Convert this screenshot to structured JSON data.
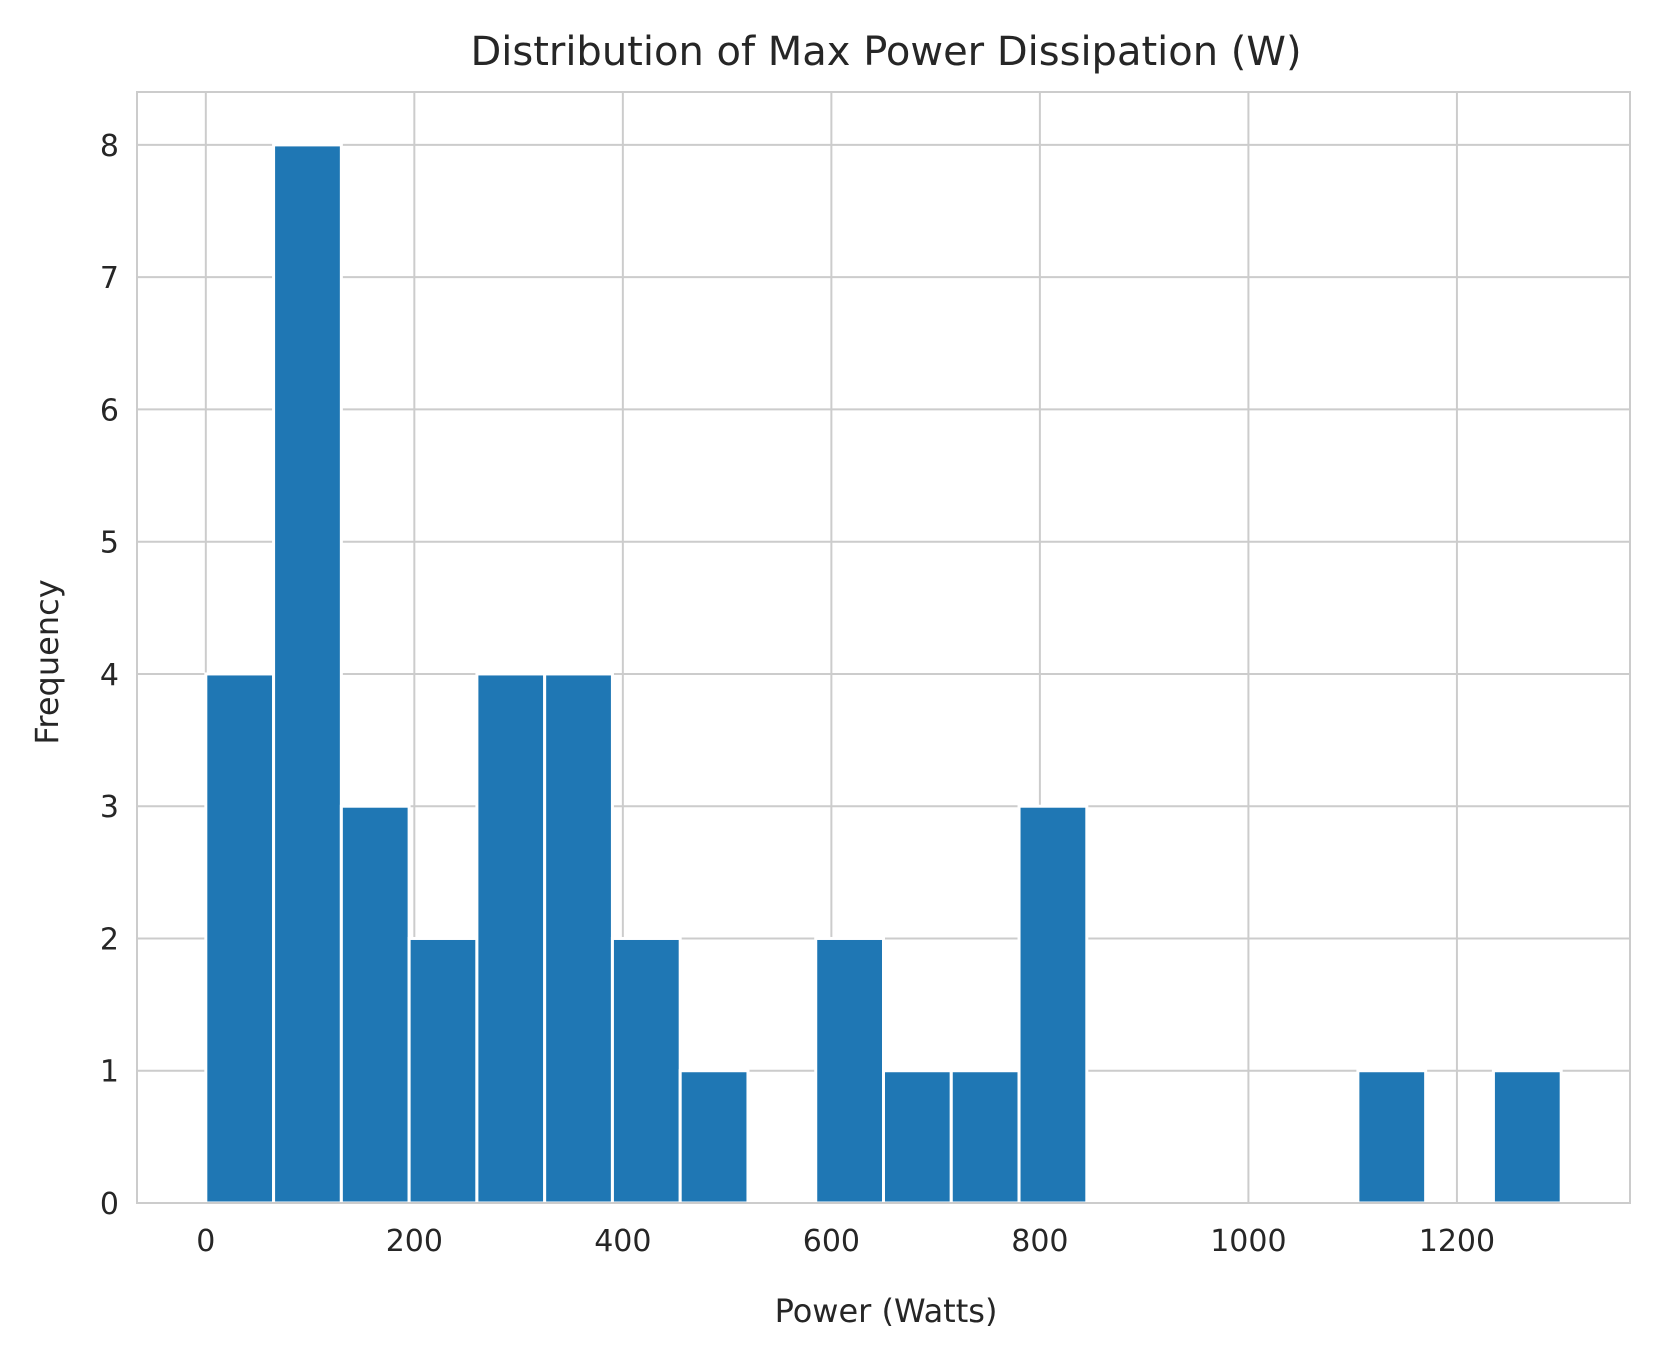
{
  "chart_data": {
    "type": "histogram",
    "title": "Distribution of Max Power Dissipation (W)",
    "xlabel": "Power (Watts)",
    "ylabel": "Frequency",
    "xlim": [
      -66,
      1366
    ],
    "ylim": [
      0,
      8.4
    ],
    "x_ticks": [
      0,
      200,
      400,
      600,
      800,
      1000,
      1200
    ],
    "y_ticks": [
      0,
      1,
      2,
      3,
      4,
      5,
      6,
      7,
      8
    ],
    "grid": true,
    "bar_color": "#1f77b4",
    "bin_edges": [
      0,
      65,
      130,
      195,
      260,
      325,
      390,
      455,
      520,
      585,
      650,
      715,
      780,
      845,
      910,
      975,
      1040,
      1105,
      1170,
      1235,
      1300
    ],
    "counts": [
      4,
      8,
      3,
      2,
      4,
      4,
      2,
      1,
      0,
      2,
      1,
      1,
      3,
      0,
      0,
      0,
      0,
      1,
      0,
      1
    ]
  }
}
